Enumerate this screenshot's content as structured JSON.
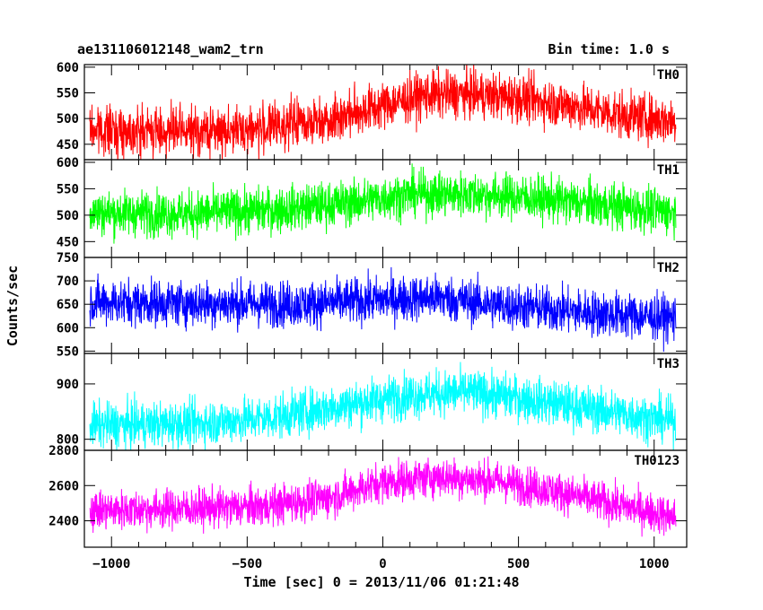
{
  "chart_data": {
    "type": "line",
    "title": "ae131106012148_wam2_trn",
    "subtitle": "Bin time: 1.0 s",
    "xlabel": "Time [sec] 0 = 2013/11/06 01:21:48",
    "ylabel": "Counts/sec",
    "xlim": [
      -1100,
      1120
    ],
    "x_range": [
      -1080,
      1080
    ],
    "x_ticks": [
      -1000,
      -500,
      0,
      500,
      1000
    ],
    "x_tick_labels": [
      "−1000",
      "−500",
      "0",
      "500",
      "1000"
    ],
    "grid": false,
    "panels": [
      {
        "label": "TH0",
        "color": "#ff0000",
        "ylim": [
          420,
          605
        ],
        "y_ticks": [
          450,
          500,
          550,
          600
        ],
        "y_tick_labels": [
          "450",
          "500",
          "550",
          "600"
        ],
        "trend": [
          [
            -1080,
            478
          ],
          [
            -700,
            474
          ],
          [
            -450,
            480
          ],
          [
            -200,
            500
          ],
          [
            0,
            525
          ],
          [
            150,
            545
          ],
          [
            300,
            548
          ],
          [
            500,
            540
          ],
          [
            700,
            525
          ],
          [
            900,
            505
          ],
          [
            1080,
            495
          ]
        ],
        "noise_amplitude": 45
      },
      {
        "label": "TH1",
        "color": "#00ff00",
        "ylim": [
          420,
          605
        ],
        "y_ticks": [
          450,
          500,
          550,
          600
        ],
        "y_tick_labels": [
          "450",
          "500",
          "550",
          "600"
        ],
        "trend": [
          [
            -1080,
            505
          ],
          [
            -700,
            503
          ],
          [
            -400,
            510
          ],
          [
            -100,
            525
          ],
          [
            100,
            540
          ],
          [
            300,
            540
          ],
          [
            500,
            535
          ],
          [
            700,
            525
          ],
          [
            900,
            515
          ],
          [
            1080,
            505
          ]
        ],
        "noise_amplitude": 42
      },
      {
        "label": "TH2",
        "color": "#0000ff",
        "ylim": [
          545,
          750
        ],
        "y_ticks": [
          550,
          600,
          650,
          700,
          750
        ],
        "y_tick_labels": [
          "550",
          "600",
          "650",
          "700",
          "750"
        ],
        "trend": [
          [
            -1080,
            655
          ],
          [
            -700,
            652
          ],
          [
            -300,
            650
          ],
          [
            0,
            660
          ],
          [
            200,
            665
          ],
          [
            400,
            650
          ],
          [
            600,
            640
          ],
          [
            800,
            630
          ],
          [
            1080,
            620
          ]
        ],
        "noise_amplitude": 48
      },
      {
        "label": "TH3",
        "color": "#00ffff",
        "ylim": [
          780,
          955
        ],
        "y_ticks": [
          800,
          900
        ],
        "y_tick_labels": [
          "800",
          "900"
        ],
        "trend": [
          [
            -1080,
            825
          ],
          [
            -700,
            828
          ],
          [
            -400,
            840
          ],
          [
            -100,
            865
          ],
          [
            100,
            880
          ],
          [
            300,
            885
          ],
          [
            500,
            875
          ],
          [
            700,
            860
          ],
          [
            900,
            845
          ],
          [
            1080,
            832
          ]
        ],
        "noise_amplitude": 40
      },
      {
        "label": "TH0123",
        "color": "#ff00ff",
        "ylim": [
          2250,
          2800
        ],
        "y_ticks": [
          2400,
          2600,
          2800
        ],
        "y_tick_labels": [
          "2400",
          "2600",
          "2800"
        ],
        "trend": [
          [
            -1080,
            2460
          ],
          [
            -700,
            2470
          ],
          [
            -450,
            2480
          ],
          [
            -200,
            2530
          ],
          [
            0,
            2620
          ],
          [
            200,
            2650
          ],
          [
            400,
            2630
          ],
          [
            600,
            2580
          ],
          [
            800,
            2510
          ],
          [
            1080,
            2420
          ]
        ],
        "noise_amplitude": 110
      }
    ]
  }
}
